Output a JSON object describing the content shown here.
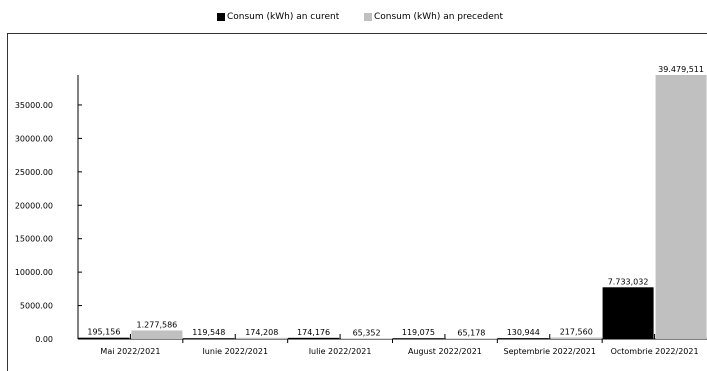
{
  "chart_data": {
    "type": "bar",
    "categories": [
      "Mai 2022/2021",
      "Iunie 2022/2021",
      "Iulie 2022/2021",
      "August 2022/2021",
      "Septembrie 2022/2021",
      "Octombrie 2022/2021"
    ],
    "series": [
      {
        "name": "Consum (kWh) an curent",
        "color": "#000000",
        "values": [
          195.156,
          119.548,
          174.176,
          119.075,
          130.944,
          7733.032
        ],
        "labels": [
          "195,156",
          "119,548",
          "174,176",
          "119,075",
          "130,944",
          "7.733,032"
        ]
      },
      {
        "name": "Consum (kWh) an precedent",
        "color": "#c0c0c0",
        "values": [
          1277.586,
          174.208,
          65.352,
          65.178,
          217.56,
          39479.511
        ],
        "labels": [
          "1.277,586",
          "174,208",
          "65,352",
          "65,178",
          "217,560",
          "39.479,511"
        ]
      }
    ],
    "yticks": [
      "0.00",
      "5000.00",
      "10000.00",
      "15000.00",
      "20000.00",
      "25000.00",
      "30000.00",
      "35000.00"
    ],
    "ylim": [
      0,
      39479.511
    ],
    "legend_position": "top-center",
    "grid": false
  }
}
